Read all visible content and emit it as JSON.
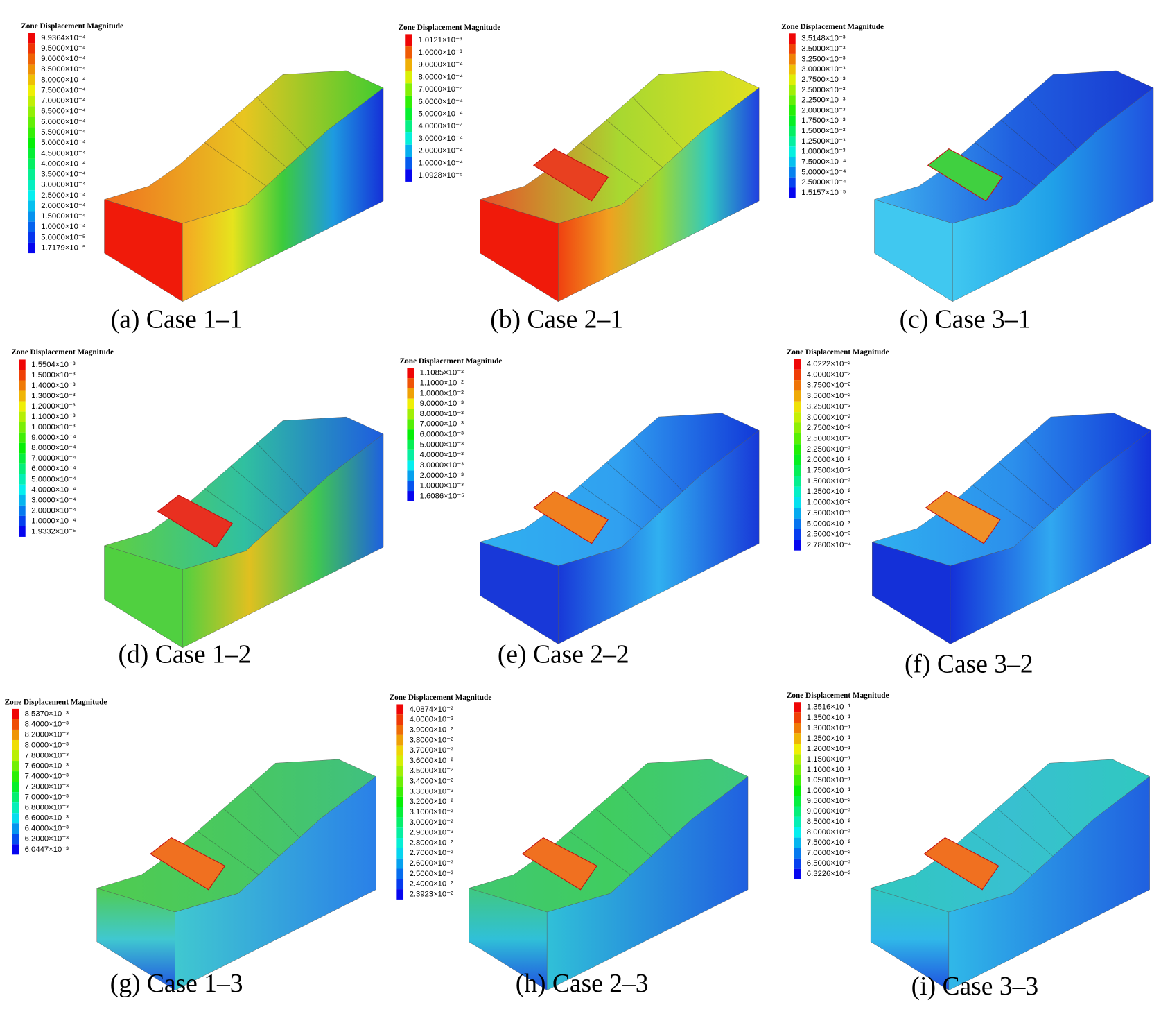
{
  "panels": [
    {
      "legend_title": "Zone Displacement Magnitude",
      "caption": "(a) Case 1–1",
      "legend_labels": [
        "9.9364×10⁻⁴",
        "9.5000×10⁻⁴",
        "9.0000×10⁻⁴",
        "8.5000×10⁻⁴",
        "8.0000×10⁻⁴",
        "7.5000×10⁻⁴",
        "7.0000×10⁻⁴",
        "6.5000×10⁻⁴",
        "6.0000×10⁻⁴",
        "5.5000×10⁻⁴",
        "5.0000×10⁻⁴",
        "4.5000×10⁻⁴",
        "4.0000×10⁻⁴",
        "3.5000×10⁻⁴",
        "3.0000×10⁻⁴",
        "2.5000×10⁻⁴",
        "2.0000×10⁻⁴",
        "1.5000×10⁻⁴",
        "1.0000×10⁻⁴",
        "5.0000×10⁻⁵",
        "1.7179×10⁻⁵"
      ]
    },
    {
      "legend_title": "Zone Displacement Magnitude",
      "caption": "(b) Case 2–1",
      "legend_labels": [
        "1.0121×10⁻³",
        "1.0000×10⁻³",
        "9.0000×10⁻⁴",
        "8.0000×10⁻⁴",
        "7.0000×10⁻⁴",
        "6.0000×10⁻⁴",
        "5.0000×10⁻⁴",
        "4.0000×10⁻⁴",
        "3.0000×10⁻⁴",
        "2.0000×10⁻⁴",
        "1.0000×10⁻⁴",
        "1.0928×10⁻⁵"
      ]
    },
    {
      "legend_title": "Zone Displacement Magnitude",
      "caption": "(c) Case 3–1",
      "legend_labels": [
        "3.5148×10⁻³",
        "3.5000×10⁻³",
        "3.2500×10⁻³",
        "3.0000×10⁻³",
        "2.7500×10⁻³",
        "2.5000×10⁻³",
        "2.2500×10⁻³",
        "2.0000×10⁻³",
        "1.7500×10⁻³",
        "1.5000×10⁻³",
        "1.2500×10⁻³",
        "1.0000×10⁻³",
        "7.5000×10⁻⁴",
        "5.0000×10⁻⁴",
        "2.5000×10⁻⁴",
        "1.5157×10⁻⁵"
      ]
    },
    {
      "legend_title": "Zone Displacement Magnitude",
      "caption": "(d) Case 1–2",
      "legend_labels": [
        "1.5504×10⁻³",
        "1.5000×10⁻³",
        "1.4000×10⁻³",
        "1.3000×10⁻³",
        "1.2000×10⁻³",
        "1.1000×10⁻³",
        "1.0000×10⁻³",
        "9.0000×10⁻⁴",
        "8.0000×10⁻⁴",
        "7.0000×10⁻⁴",
        "6.0000×10⁻⁴",
        "5.0000×10⁻⁴",
        "4.0000×10⁻⁴",
        "3.0000×10⁻⁴",
        "2.0000×10⁻⁴",
        "1.0000×10⁻⁴",
        "1.9332×10⁻⁵"
      ]
    },
    {
      "legend_title": "Zone Displacement Magnitude",
      "caption": "(e) Case 2–2",
      "legend_labels": [
        "1.1085×10⁻²",
        "1.1000×10⁻²",
        "1.0000×10⁻²",
        "9.0000×10⁻³",
        "8.0000×10⁻³",
        "7.0000×10⁻³",
        "6.0000×10⁻³",
        "5.0000×10⁻³",
        "4.0000×10⁻³",
        "3.0000×10⁻³",
        "2.0000×10⁻³",
        "1.0000×10⁻³",
        "1.6086×10⁻⁵"
      ]
    },
    {
      "legend_title": "Zone Displacement Magnitude",
      "caption": "(f) Case 3–2",
      "legend_labels": [
        "4.0222×10⁻²",
        "4.0000×10⁻²",
        "3.7500×10⁻²",
        "3.5000×10⁻²",
        "3.2500×10⁻²",
        "3.0000×10⁻²",
        "2.7500×10⁻²",
        "2.5000×10⁻²",
        "2.2500×10⁻²",
        "2.0000×10⁻²",
        "1.7500×10⁻²",
        "1.5000×10⁻²",
        "1.2500×10⁻²",
        "1.0000×10⁻²",
        "7.5000×10⁻³",
        "5.0000×10⁻³",
        "2.5000×10⁻³",
        "2.7800×10⁻⁴"
      ]
    },
    {
      "legend_title": "Zone Displacement Magnitude",
      "caption": "(g) Case 1–3",
      "legend_labels": [
        "8.5370×10⁻³",
        "8.4000×10⁻³",
        "8.2000×10⁻³",
        "8.0000×10⁻³",
        "7.8000×10⁻³",
        "7.6000×10⁻³",
        "7.4000×10⁻³",
        "7.2000×10⁻³",
        "7.0000×10⁻³",
        "6.8000×10⁻³",
        "6.6000×10⁻³",
        "6.4000×10⁻³",
        "6.2000×10⁻³",
        "6.0447×10⁻³"
      ]
    },
    {
      "legend_title": "Zone Displacement Magnitude",
      "caption": "(h) Case 2–3",
      "legend_labels": [
        "4.0874×10⁻²",
        "4.0000×10⁻²",
        "3.9000×10⁻²",
        "3.8000×10⁻²",
        "3.7000×10⁻²",
        "3.6000×10⁻²",
        "3.5000×10⁻²",
        "3.4000×10⁻²",
        "3.3000×10⁻²",
        "3.2000×10⁻²",
        "3.1000×10⁻²",
        "3.0000×10⁻²",
        "2.9000×10⁻²",
        "2.8000×10⁻²",
        "2.7000×10⁻²",
        "2.6000×10⁻²",
        "2.5000×10⁻²",
        "2.4000×10⁻²",
        "2.3923×10⁻²"
      ]
    },
    {
      "legend_title": "Zone Displacement Magnitude",
      "caption": "(i) Case 3–3",
      "legend_labels": [
        "1.3516×10⁻¹",
        "1.3500×10⁻¹",
        "1.3000×10⁻¹",
        "1.2500×10⁻¹",
        "1.2000×10⁻¹",
        "1.1500×10⁻¹",
        "1.1000×10⁻¹",
        "1.0500×10⁻¹",
        "1.0000×10⁻¹",
        "9.5000×10⁻²",
        "9.0000×10⁻²",
        "8.5000×10⁻²",
        "8.0000×10⁻²",
        "7.5000×10⁻²",
        "7.0000×10⁻²",
        "6.5000×10⁻²",
        "6.3226×10⁻²"
      ]
    }
  ]
}
